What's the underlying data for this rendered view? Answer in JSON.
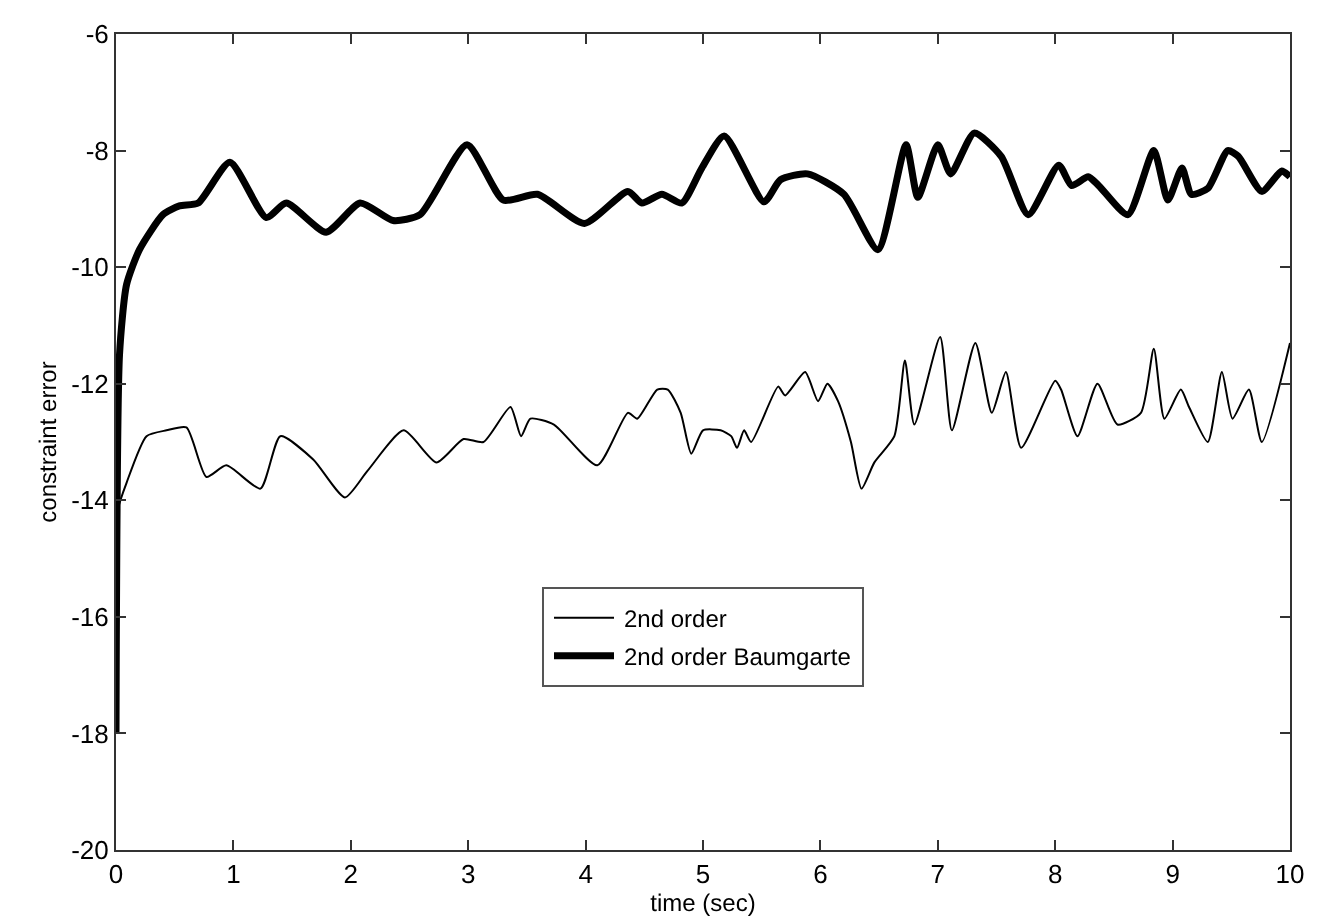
{
  "chart_data": {
    "type": "line",
    "xlabel": "time (sec)",
    "ylabel": "constraint error",
    "xlim": [
      0,
      10
    ],
    "ylim": [
      -20,
      -6
    ],
    "xticks": [
      0,
      1,
      2,
      3,
      4,
      5,
      6,
      7,
      8,
      9,
      10
    ],
    "yticks": [
      -20,
      -18,
      -16,
      -14,
      -12,
      -10,
      -8,
      -6
    ],
    "grid": false,
    "legend": "bottom",
    "marker": "none",
    "line_style": "solid",
    "series": [
      {
        "name": "2nd order",
        "color": "#000000",
        "x": [
          0,
          0.01,
          0.09,
          0.26,
          0.43,
          0.6,
          0.77,
          0.94,
          1.23,
          1.4,
          1.68,
          1.95,
          2.14,
          2.45,
          2.73,
          2.96,
          3.13,
          3.36,
          3.45,
          3.53,
          3.73,
          4.1,
          4.36,
          4.44,
          4.61,
          4.7,
          4.81,
          4.9,
          5.0,
          5.15,
          5.24,
          5.29,
          5.35,
          5.41,
          5.64,
          5.7,
          5.87,
          5.98,
          6.06,
          6.15,
          6.26,
          6.35,
          6.46,
          6.63,
          6.72,
          6.8,
          7.02,
          7.12,
          7.32,
          7.46,
          7.58,
          7.71,
          8.0,
          8.05,
          8.19,
          8.36,
          8.53,
          8.73,
          8.84,
          8.93,
          9.07,
          9.14,
          9.3,
          9.42,
          9.51,
          9.65,
          9.76,
          10
        ],
        "values": [
          -14.6,
          -14.2,
          -13.7,
          -12.9,
          -12.8,
          -12.75,
          -13.6,
          -13.4,
          -13.8,
          -12.9,
          -13.3,
          -13.95,
          -13.5,
          -12.8,
          -13.35,
          -12.95,
          -13.0,
          -12.4,
          -12.9,
          -12.6,
          -12.7,
          -13.4,
          -12.5,
          -12.6,
          -12.1,
          -12.1,
          -12.5,
          -13.2,
          -12.8,
          -12.8,
          -12.9,
          -13.1,
          -12.8,
          -13.0,
          -12.05,
          -12.2,
          -11.8,
          -12.3,
          -12.0,
          -12.3,
          -13.0,
          -13.8,
          -13.35,
          -12.9,
          -11.6,
          -12.7,
          -11.2,
          -12.8,
          -11.3,
          -12.5,
          -11.8,
          -13.1,
          -11.95,
          -12.1,
          -12.9,
          -12.0,
          -12.7,
          -12.5,
          -11.4,
          -12.6,
          -12.1,
          -12.4,
          -13.0,
          -11.8,
          -12.6,
          -12.1,
          -13.0,
          -11.3
        ]
      },
      {
        "name": "2nd order Baumgarte",
        "color": "#000000",
        "x": [
          0,
          0.03,
          0.09,
          0.2,
          0.4,
          0.54,
          0.7,
          0.97,
          1.28,
          1.45,
          1.79,
          2.08,
          2.36,
          2.59,
          2.99,
          3.3,
          3.59,
          3.99,
          4.36,
          4.48,
          4.65,
          4.82,
          4.99,
          5.18,
          5.52,
          5.66,
          5.89,
          6.2,
          6.49,
          6.73,
          6.83,
          7.0,
          7.11,
          7.31,
          7.54,
          7.77,
          8.03,
          8.14,
          8.28,
          8.37,
          8.62,
          8.84,
          8.96,
          9.08,
          9.16,
          9.3,
          9.47,
          9.56,
          9.76,
          9.93,
          10
        ],
        "values": [
          -18,
          -11.5,
          -10.3,
          -9.7,
          -9.1,
          -8.95,
          -8.9,
          -8.2,
          -9.15,
          -8.9,
          -9.4,
          -8.9,
          -9.2,
          -9.1,
          -7.9,
          -8.85,
          -8.75,
          -9.25,
          -8.7,
          -8.9,
          -8.75,
          -8.9,
          -8.3,
          -7.75,
          -8.88,
          -8.5,
          -8.4,
          -8.75,
          -9.7,
          -7.9,
          -8.8,
          -7.9,
          -8.4,
          -7.7,
          -8.1,
          -9.1,
          -8.25,
          -8.6,
          -8.45,
          -8.6,
          -9.1,
          -8.0,
          -8.85,
          -8.3,
          -8.75,
          -8.65,
          -8.0,
          -8.1,
          -8.7,
          -8.35,
          -8.45
        ]
      }
    ]
  }
}
